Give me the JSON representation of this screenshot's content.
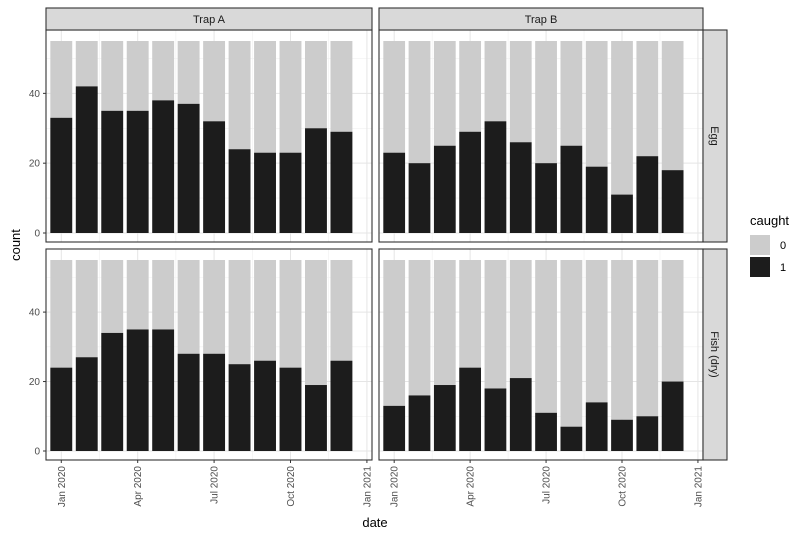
{
  "chart_data": {
    "type": "bar",
    "stacked": true,
    "facet_cols": [
      "Trap A",
      "Trap B"
    ],
    "facet_rows": [
      "Egg",
      "Fish (dry)"
    ],
    "x_tick_labels": [
      "Jan 2020",
      "Apr 2020",
      "Jul 2020",
      "Oct 2020",
      "Jan 2021"
    ],
    "x_tick_months": [
      0,
      3,
      6,
      9,
      12
    ],
    "months": [
      "2020-01",
      "2020-02",
      "2020-03",
      "2020-04",
      "2020-05",
      "2020-06",
      "2020-07",
      "2020-08",
      "2020-09",
      "2020-10",
      "2020-11",
      "2020-12"
    ],
    "month_total": 55,
    "xlabel": "date",
    "ylabel": "count",
    "ylim": [
      0,
      55
    ],
    "y_ticks": [
      0,
      20,
      40
    ],
    "legend": {
      "title": "caught",
      "position": "right",
      "entries": [
        {
          "label": "0",
          "color": "#cccccc"
        },
        {
          "label": "1",
          "color": "#1c1c1c"
        }
      ]
    },
    "grid": true,
    "panels": [
      {
        "col": "Trap A",
        "row": "Egg",
        "caught_1": [
          33,
          42,
          35,
          35,
          38,
          37,
          32,
          24,
          23,
          23,
          30,
          29
        ]
      },
      {
        "col": "Trap B",
        "row": "Egg",
        "caught_1": [
          23,
          20,
          25,
          29,
          32,
          26,
          20,
          25,
          19,
          11,
          22,
          18
        ]
      },
      {
        "col": "Trap A",
        "row": "Fish (dry)",
        "caught_1": [
          24,
          27,
          34,
          35,
          35,
          28,
          28,
          25,
          26,
          24,
          19,
          26
        ]
      },
      {
        "col": "Trap B",
        "row": "Fish (dry)",
        "caught_1": [
          13,
          16,
          19,
          24,
          18,
          21,
          11,
          7,
          14,
          9,
          10,
          20
        ]
      }
    ]
  }
}
